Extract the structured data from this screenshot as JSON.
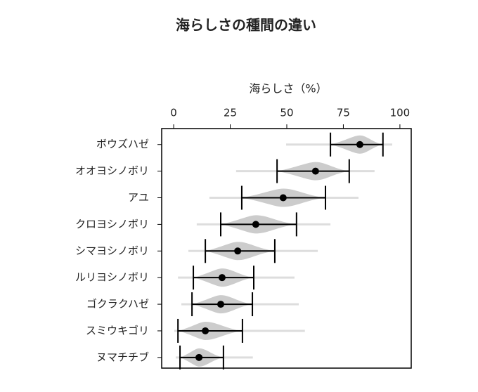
{
  "chart_data": {
    "type": "violin",
    "title": "海らしさの種間の違い",
    "xlabel": "海らしさ（%）",
    "categories": [
      "ボウズハゼ",
      "オオヨシノボリ",
      "アユ",
      "クロヨシノボリ",
      "シマヨシノボリ",
      "ルリヨシノボリ",
      "ゴクラクハゼ",
      "スミウキゴリ",
      "ヌマチチブ"
    ],
    "values": [
      82.3,
      62.7,
      48.4,
      36.3,
      28.3,
      21.4,
      20.8,
      14,
      11.2
    ],
    "lower": [
      69.3,
      45.7,
      30.1,
      20.8,
      14,
      8.7,
      8.1,
      1.9,
      2.8
    ],
    "upper": [
      92.5,
      77.6,
      67.1,
      54.3,
      44.7,
      35.4,
      34.8,
      30.4,
      22
    ],
    "min": [
      49.7,
      27.6,
      15.8,
      10.2,
      6.5,
      1.9,
      3.4,
      0.3,
      0.9
    ],
    "max": [
      96.6,
      88.8,
      81.7,
      69.3,
      63.7,
      53.4,
      55.3,
      58,
      35
    ],
    "xlim": [
      -5.3,
      105
    ],
    "xticks": [
      0,
      25,
      50,
      75,
      100
    ],
    "violin_color": "#cccccc",
    "range_color": "#dddddd",
    "color": "#000000"
  }
}
